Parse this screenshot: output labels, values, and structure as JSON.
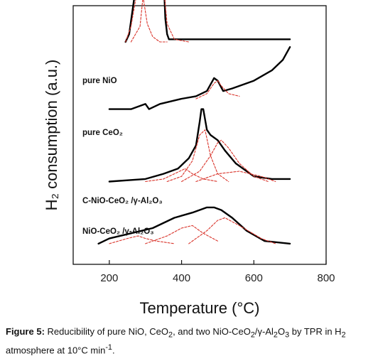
{
  "chart_data": {
    "type": "line",
    "xlabel": "Temperature (°C)",
    "ylabel": "H₂ consumption (a.u.)",
    "xlim": [
      100,
      800
    ],
    "x_ticks": [
      "200",
      "400",
      "600",
      "800"
    ],
    "x_tick_values": [
      200,
      400,
      600,
      800
    ],
    "curve_labels": [
      {
        "text": "pure NiO"
      },
      {
        "text": "pure CeO₂"
      },
      {
        "text": "C-NiO-CeO₂ /γ-Al₂O₃"
      },
      {
        "text": "NiO-CeO₂ /γ-Al₂O₃"
      }
    ],
    "series": [
      {
        "style": "solid",
        "color": "#000000",
        "group": 0,
        "x": [
          245,
          255,
          270,
          285,
          300,
          315,
          325,
          335,
          345,
          350,
          355,
          360,
          365,
          400,
          500,
          600,
          700
        ],
        "y": [
          0.86,
          0.89,
          1.04,
          1.18,
          1.32,
          1.42,
          1.44,
          1.42,
          1.32,
          1.12,
          0.95,
          0.89,
          0.87,
          0.87,
          0.87,
          0.87,
          0.87
        ]
      },
      {
        "style": "dashed",
        "color": "#d9342b",
        "group": 0,
        "x": [
          245,
          260,
          275,
          285,
          295,
          305,
          320,
          340,
          360
        ],
        "y": [
          0.86,
          0.92,
          1.04,
          1.08,
          1.02,
          0.93,
          0.88,
          0.86,
          0.86
        ]
      },
      {
        "style": "dashed",
        "color": "#d9342b",
        "group": 0,
        "x": [
          260,
          285,
          305,
          320,
          330,
          340,
          350,
          360,
          380,
          420
        ],
        "y": [
          0.86,
          0.92,
          1.2,
          1.36,
          1.4,
          1.3,
          1.08,
          0.93,
          0.87,
          0.86
        ]
      },
      {
        "style": "solid",
        "color": "#000000",
        "group": 1,
        "x": [
          200,
          260,
          300,
          310,
          340,
          400,
          440,
          470,
          490,
          500,
          515,
          540,
          600,
          650,
          680,
          700
        ],
        "y": [
          0.6,
          0.6,
          0.62,
          0.6,
          0.62,
          0.64,
          0.65,
          0.67,
          0.72,
          0.71,
          0.67,
          0.68,
          0.71,
          0.75,
          0.79,
          0.84
        ]
      },
      {
        "style": "dashed",
        "color": "#d9342b",
        "group": 1,
        "x": [
          440,
          470,
          490,
          500,
          510,
          530,
          560
        ],
        "y": [
          0.64,
          0.66,
          0.7,
          0.71,
          0.69,
          0.66,
          0.65
        ]
      },
      {
        "style": "solid",
        "color": "#000000",
        "group": 2,
        "x": [
          200,
          300,
          350,
          390,
          420,
          440,
          450,
          455,
          460,
          470,
          480,
          500,
          520,
          550,
          600,
          650,
          700
        ],
        "y": [
          0.32,
          0.33,
          0.35,
          0.37,
          0.41,
          0.46,
          0.55,
          0.6,
          0.6,
          0.52,
          0.5,
          0.48,
          0.44,
          0.39,
          0.34,
          0.33,
          0.33
        ]
      },
      {
        "style": "dashed",
        "color": "#d9342b",
        "group": 2,
        "x": [
          300,
          350,
          380,
          410,
          430,
          460,
          500
        ],
        "y": [
          0.32,
          0.33,
          0.35,
          0.37,
          0.35,
          0.33,
          0.32
        ]
      },
      {
        "style": "dashed",
        "color": "#d9342b",
        "group": 2,
        "x": [
          360,
          400,
          430,
          450,
          465,
          480,
          500,
          530
        ],
        "y": [
          0.32,
          0.34,
          0.4,
          0.5,
          0.52,
          0.42,
          0.35,
          0.32
        ]
      },
      {
        "style": "dashed",
        "color": "#d9342b",
        "group": 2,
        "x": [
          400,
          450,
          480,
          500,
          510,
          530,
          560,
          600,
          640
        ],
        "y": [
          0.32,
          0.36,
          0.42,
          0.47,
          0.48,
          0.45,
          0.39,
          0.34,
          0.32
        ]
      },
      {
        "style": "dashed",
        "color": "#d9342b",
        "group": 2,
        "x": [
          440,
          500,
          560,
          620,
          660
        ],
        "y": [
          0.32,
          0.35,
          0.36,
          0.34,
          0.32
        ]
      },
      {
        "style": "solid",
        "color": "#000000",
        "group": 3,
        "x": [
          170,
          200,
          260,
          320,
          380,
          430,
          470,
          490,
          510,
          540,
          580,
          630,
          700
        ],
        "y": [
          0.08,
          0.1,
          0.12,
          0.14,
          0.18,
          0.2,
          0.22,
          0.22,
          0.21,
          0.18,
          0.13,
          0.09,
          0.08
        ]
      },
      {
        "style": "dashed",
        "color": "#d9342b",
        "group": 3,
        "x": [
          200,
          250,
          280,
          300,
          330,
          380
        ],
        "y": [
          0.08,
          0.1,
          0.11,
          0.1,
          0.09,
          0.08
        ]
      },
      {
        "style": "dashed",
        "color": "#d9342b",
        "group": 3,
        "x": [
          300,
          360,
          400,
          430,
          460,
          500
        ],
        "y": [
          0.08,
          0.11,
          0.14,
          0.15,
          0.12,
          0.09
        ]
      },
      {
        "style": "dashed",
        "color": "#d9342b",
        "group": 3,
        "x": [
          420,
          470,
          500,
          520,
          560,
          620,
          660
        ],
        "y": [
          0.08,
          0.13,
          0.17,
          0.18,
          0.15,
          0.1,
          0.08
        ]
      }
    ]
  },
  "caption": {
    "label": "Figure 5:",
    "text_a": " Reducibility of pure NiO, CeO",
    "sub_a": "2",
    "text_b": ", and two NiO-CeO",
    "sub_b": "2",
    "text_c": "/γ-Al",
    "sub_c": "2",
    "text_d": "O",
    "sub_d": "3",
    "text_e": " by TPR in H",
    "sub_e": "2",
    "text_f": " atmosphere at 10°C min",
    "sup_f": "-1",
    "text_g": "."
  }
}
